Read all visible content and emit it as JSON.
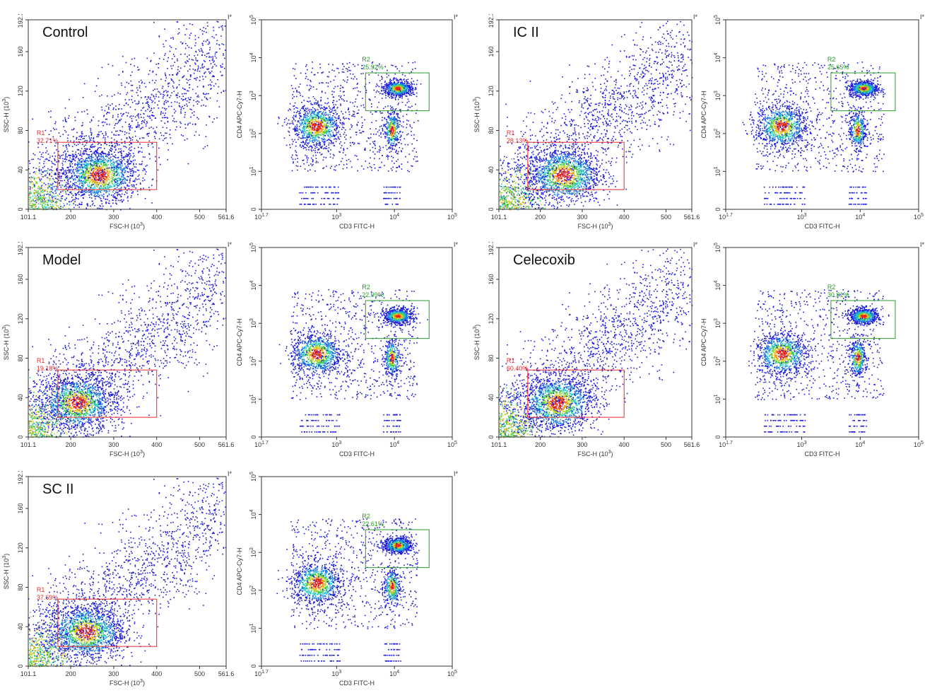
{
  "figure": {
    "star_marker": "I*"
  },
  "chart_data": [
    {
      "type": "scatter",
      "panel": "Control scatter",
      "label": "Control",
      "xlabel": "FSC-H (10^3)",
      "ylabel": "SSC-H (10^3)",
      "xlim": [
        101.1,
        561.6
      ],
      "ylim": [
        0,
        192.3
      ],
      "x_ticks": [
        "101.1",
        "200",
        "300",
        "400",
        "500",
        "561.6"
      ],
      "y_ticks": [
        "0",
        "40",
        "80",
        "120",
        "160",
        "192.3"
      ],
      "gate": {
        "name": "R1",
        "percent": "32.71%",
        "x": [
          170,
          400
        ],
        "y": [
          20,
          68
        ]
      },
      "density_center": [
        265,
        35
      ]
    },
    {
      "type": "scatter",
      "panel": "Control CD3/CD4",
      "xlabel": "CD3 FITC-H",
      "ylabel": "CD4 APC-Cy7-H",
      "x_log": [
        1.7,
        5
      ],
      "y_log": [
        0,
        5
      ],
      "x_ticks": [
        "10^1.7",
        "10^3",
        "10^4",
        "10^5"
      ],
      "y_ticks": [
        "0",
        "10^1",
        "10^2",
        "10^3",
        "10^4",
        "10^5"
      ],
      "gate": {
        "name": "R2",
        "percent": "25.92%",
        "x_log": [
          3.5,
          4.6
        ],
        "y_log": [
          2.6,
          3.6
        ]
      }
    },
    {
      "type": "scatter",
      "panel": "IC II scatter",
      "label": "IC II",
      "xlabel": "FSC-H (10^3)",
      "ylabel": "SSC-H (10^3)",
      "xlim": [
        101.1,
        561.6
      ],
      "ylim": [
        0,
        192.3
      ],
      "x_ticks": [
        "101.1",
        "200",
        "300",
        "400",
        "500",
        "561.6"
      ],
      "y_ticks": [
        "0",
        "40",
        "80",
        "120",
        "160",
        "192.3"
      ],
      "gate": {
        "name": "R1",
        "percent": "28.13%",
        "x": [
          170,
          400
        ],
        "y": [
          20,
          68
        ]
      },
      "density_center": [
        255,
        35
      ]
    },
    {
      "type": "scatter",
      "panel": "IC II CD3/CD4",
      "xlabel": "CD3 FITC-H",
      "ylabel": "CD4 APC-Cy7-H",
      "x_log": [
        1.7,
        5
      ],
      "y_log": [
        0,
        5
      ],
      "x_ticks": [
        "10^1.7",
        "10^3",
        "10^4",
        "10^5"
      ],
      "y_ticks": [
        "0",
        "10^1",
        "10^2",
        "10^3",
        "10^4",
        "10^5"
      ],
      "gate": {
        "name": "R2",
        "percent": "25.65%",
        "x_log": [
          3.5,
          4.6
        ],
        "y_log": [
          2.6,
          3.6
        ]
      }
    },
    {
      "type": "scatter",
      "panel": "Model scatter",
      "label": "Model",
      "xlabel": "FSC-H (10^3)",
      "ylabel": "SSC-H (10^3)",
      "xlim": [
        101.1,
        561.6
      ],
      "ylim": [
        0,
        192.3
      ],
      "x_ticks": [
        "101.1",
        "200",
        "300",
        "400",
        "500",
        "561.6"
      ],
      "y_ticks": [
        "0",
        "40",
        "80",
        "120",
        "160",
        "192.3"
      ],
      "gate": {
        "name": "R1",
        "percent": "19.18%",
        "x": [
          170,
          400
        ],
        "y": [
          20,
          68
        ]
      },
      "density_center": [
        215,
        35
      ]
    },
    {
      "type": "scatter",
      "panel": "Model CD3/CD4",
      "xlabel": "CD3 FITC-H",
      "ylabel": "CD4 APC-Cy7-H",
      "x_log": [
        1.7,
        5
      ],
      "y_log": [
        0,
        5
      ],
      "x_ticks": [
        "10^1.7",
        "10^3",
        "10^4",
        "10^5"
      ],
      "y_ticks": [
        "0",
        "10^1",
        "10^2",
        "10^3",
        "10^4",
        "10^5"
      ],
      "gate": {
        "name": "R2",
        "percent": "22.99%",
        "x_log": [
          3.5,
          4.6
        ],
        "y_log": [
          2.6,
          3.6
        ]
      }
    },
    {
      "type": "scatter",
      "panel": "Celecoxib scatter",
      "label": "Celecoxib",
      "xlabel": "FSC-H (10^3)",
      "ylabel": "SSC-H (10^3)",
      "xlim": [
        101.1,
        561.6
      ],
      "ylim": [
        0,
        192.3
      ],
      "x_ticks": [
        "101.1",
        "200",
        "300",
        "400",
        "500",
        "561.6"
      ],
      "y_ticks": [
        "0",
        "40",
        "80",
        "120",
        "160",
        "192.3"
      ],
      "gate": {
        "name": "R1",
        "percent": "60.40%",
        "x": [
          170,
          400
        ],
        "y": [
          20,
          68
        ]
      },
      "density_center": [
        240,
        35
      ]
    },
    {
      "type": "scatter",
      "panel": "Celecoxib CD3/CD4",
      "xlabel": "CD3 FITC-H",
      "ylabel": "CD4 APC-Cy7-H",
      "x_log": [
        1.7,
        5
      ],
      "y_log": [
        0,
        5
      ],
      "x_ticks": [
        "10^1.7",
        "10^3",
        "10^4",
        "10^5"
      ],
      "y_ticks": [
        "0",
        "10^1",
        "10^2",
        "10^3",
        "10^4",
        "10^5"
      ],
      "gate": {
        "name": "R2",
        "percent": "30.81%",
        "x_log": [
          3.5,
          4.6
        ],
        "y_log": [
          2.6,
          3.6
        ]
      }
    },
    {
      "type": "scatter",
      "panel": "SC II scatter",
      "label": "SC II",
      "xlabel": "FSC-H (10^3)",
      "ylabel": "SSC-H (10^3)",
      "xlim": [
        101.1,
        561.6
      ],
      "ylim": [
        0,
        192.3
      ],
      "x_ticks": [
        "101.1",
        "200",
        "300",
        "400",
        "500",
        "561.6"
      ],
      "y_ticks": [
        "0",
        "40",
        "80",
        "120",
        "160",
        "192.3"
      ],
      "gate": {
        "name": "R1",
        "percent": "37.69%",
        "x": [
          170,
          400
        ],
        "y": [
          20,
          68
        ]
      },
      "density_center": [
        235,
        35
      ]
    },
    {
      "type": "scatter",
      "panel": "SC II CD3/CD4",
      "xlabel": "CD3 FITC-H",
      "ylabel": "CD4 APC-Cy7-H",
      "x_log": [
        1.7,
        5
      ],
      "y_log": [
        0,
        5
      ],
      "x_ticks": [
        "10^1.7",
        "10^3",
        "10^4",
        "10^5"
      ],
      "y_ticks": [
        "0",
        "10^1",
        "10^2",
        "10^3",
        "10^4",
        "10^5"
      ],
      "gate": {
        "name": "R2",
        "percent": "22.61%",
        "x_log": [
          3.5,
          4.6
        ],
        "y_log": [
          2.6,
          3.6
        ]
      }
    }
  ]
}
